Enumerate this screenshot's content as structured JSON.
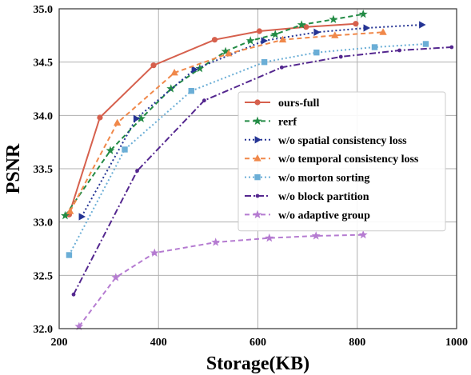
{
  "chart_data": {
    "type": "line",
    "xlabel": "Storage(KB)",
    "ylabel": "PSNR",
    "xlim": [
      200,
      1000
    ],
    "ylim": [
      32.0,
      35.0
    ],
    "xticks": [
      "200",
      "400",
      "600",
      "800",
      "1000"
    ],
    "yticks": [
      "32.0",
      "32.5",
      "33.0",
      "33.5",
      "34.0",
      "34.5",
      "35.0"
    ],
    "grid": true,
    "legend_position": "center-right",
    "series": [
      {
        "name": "ours-full",
        "color": "#d6604d",
        "dash": "solid",
        "marker": "circle",
        "x": [
          220,
          282,
          390,
          513,
          603,
          697,
          797
        ],
        "y": [
          33.07,
          33.98,
          34.47,
          34.71,
          34.79,
          34.83,
          34.86
        ]
      },
      {
        "name": "rerf",
        "color": "#238b45",
        "dash": "dashed",
        "marker": "star",
        "x": [
          212,
          303,
          365,
          425,
          483,
          535,
          585,
          635,
          688,
          752,
          812
        ],
        "y": [
          33.06,
          33.67,
          33.97,
          34.25,
          34.44,
          34.6,
          34.7,
          34.76,
          34.85,
          34.9,
          34.95
        ]
      },
      {
        "name": "w/o spatial consistency loss",
        "color": "#253494",
        "dash": "dotted",
        "marker": "triangle-right",
        "x": [
          245,
          355,
          472,
          612,
          718,
          818,
          930
        ],
        "y": [
          33.05,
          33.97,
          34.43,
          34.7,
          34.78,
          34.82,
          34.85
        ]
      },
      {
        "name": "w/o temporal consistency loss",
        "color": "#f0884a",
        "dash": "dashed",
        "marker": "triangle-up",
        "x": [
          222,
          317,
          432,
          541,
          650,
          755,
          852
        ],
        "y": [
          33.1,
          33.93,
          34.4,
          34.58,
          34.71,
          34.75,
          34.78
        ]
      },
      {
        "name": "w/o morton sorting",
        "color": "#6baed6",
        "dash": "dotted",
        "marker": "square",
        "x": [
          220,
          332,
          466,
          613,
          718,
          835,
          938
        ],
        "y": [
          32.69,
          33.68,
          34.23,
          34.5,
          34.59,
          34.64,
          34.67
        ]
      },
      {
        "name": "w/o block partition",
        "color": "#54278f",
        "dash": "dashdot",
        "marker": "point",
        "x": [
          229,
          357,
          492,
          648,
          767,
          885,
          990
        ],
        "y": [
          32.32,
          33.48,
          34.14,
          34.45,
          34.55,
          34.61,
          34.64
        ]
      },
      {
        "name": "w/o adaptive group",
        "color": "#b57bd1",
        "dash": "dashed",
        "marker": "star",
        "x": [
          240,
          314,
          392,
          515,
          623,
          717,
          812
        ],
        "y": [
          32.02,
          32.48,
          32.71,
          32.81,
          32.85,
          32.87,
          32.88
        ]
      }
    ]
  }
}
